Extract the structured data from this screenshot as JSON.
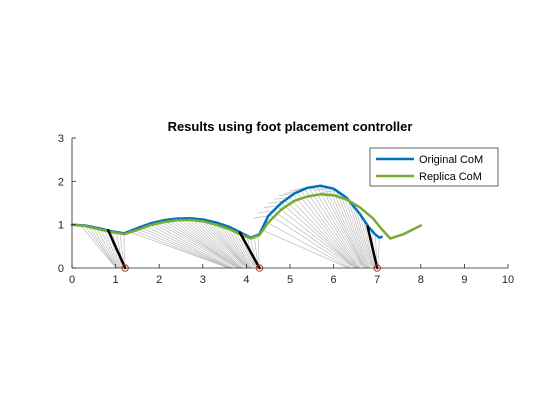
{
  "chart_data": {
    "type": "line",
    "title": "Results using foot placement controller",
    "xlabel": "",
    "ylabel": "",
    "xlim": [
      0,
      10
    ],
    "ylim": [
      0,
      3
    ],
    "xticks": [
      0,
      1,
      2,
      3,
      4,
      5,
      6,
      7,
      8,
      9,
      10
    ],
    "yticks": [
      0,
      1,
      2,
      3
    ],
    "grid": false,
    "legend_position": "top-right",
    "series": [
      {
        "name": "Original CoM",
        "color": "#0072BD",
        "x": [
          0,
          0.3,
          0.6,
          0.9,
          1.2,
          1.5,
          1.8,
          2.1,
          2.4,
          2.7,
          3.0,
          3.3,
          3.6,
          3.9,
          4.1,
          4.3,
          4.5,
          4.8,
          5.1,
          5.4,
          5.7,
          6.0,
          6.3,
          6.6,
          6.8,
          6.95,
          7.05,
          7.1
        ],
        "y": [
          1.0,
          0.98,
          0.92,
          0.85,
          0.8,
          0.92,
          1.03,
          1.1,
          1.14,
          1.15,
          1.12,
          1.05,
          0.95,
          0.8,
          0.7,
          0.78,
          1.2,
          1.5,
          1.72,
          1.85,
          1.9,
          1.83,
          1.62,
          1.25,
          0.95,
          0.78,
          0.7,
          0.72
        ]
      },
      {
        "name": "Replica CoM",
        "color": "#77AC30",
        "x": [
          0,
          0.3,
          0.6,
          0.9,
          1.2,
          1.5,
          1.8,
          2.1,
          2.4,
          2.7,
          3.0,
          3.3,
          3.6,
          3.9,
          4.1,
          4.3,
          4.5,
          4.8,
          5.1,
          5.4,
          5.7,
          6.0,
          6.3,
          6.6,
          6.9,
          7.1,
          7.3,
          7.6,
          8.0
        ],
        "y": [
          1.0,
          0.97,
          0.9,
          0.83,
          0.78,
          0.88,
          0.99,
          1.06,
          1.1,
          1.11,
          1.08,
          1.0,
          0.9,
          0.76,
          0.68,
          0.76,
          1.05,
          1.35,
          1.55,
          1.65,
          1.7,
          1.68,
          1.58,
          1.4,
          1.15,
          0.9,
          0.68,
          0.78,
          0.98
        ]
      }
    ],
    "stance_legs": [
      {
        "foot_x": 1.22,
        "hip_x": 0.83,
        "hip_y": 0.87
      },
      {
        "foot_x": 4.3,
        "hip_x": 3.85,
        "hip_y": 0.82
      },
      {
        "foot_x": 7.0,
        "hip_x": 6.78,
        "hip_y": 0.95
      }
    ],
    "contact_points": [
      {
        "x": 1.22,
        "y": 0.0
      },
      {
        "x": 4.3,
        "y": 0.0
      },
      {
        "x": 7.0,
        "y": 0.0
      }
    ],
    "leg_trace_color": "#bdbdbd",
    "stance_leg_color": "#000000",
    "contact_color": "#c0392b"
  }
}
